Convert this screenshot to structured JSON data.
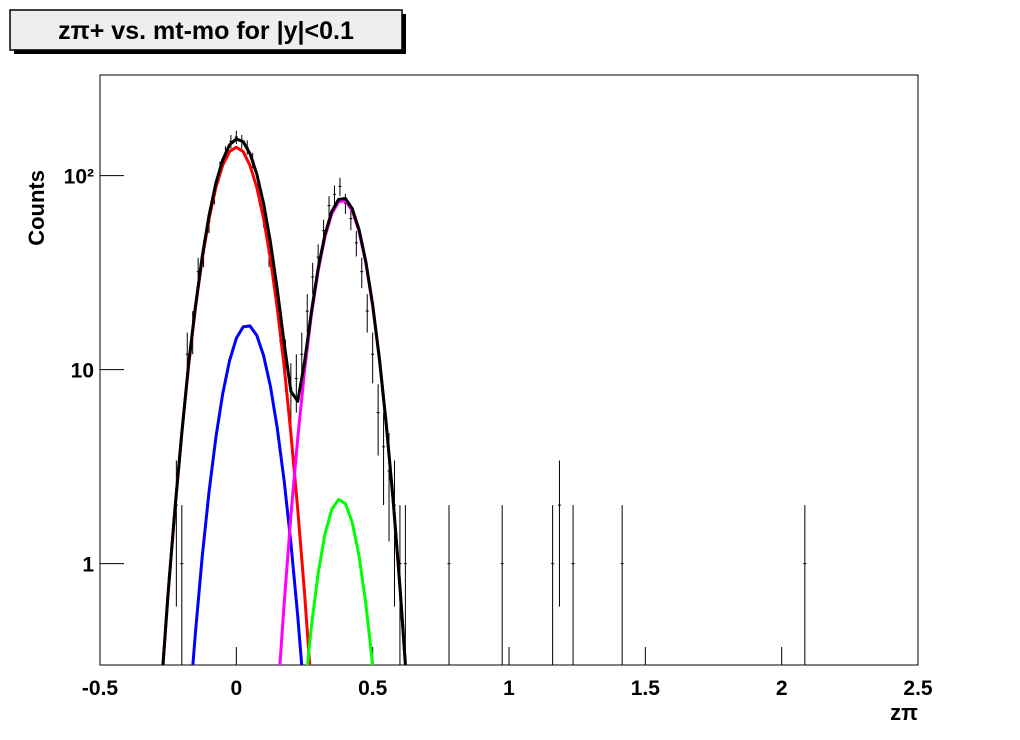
{
  "chart_data": {
    "type": "line",
    "title": "zπ+ vs. mt-mo for |y|<0.1",
    "x_label": "zπ",
    "y_label": "Counts",
    "log_y": true,
    "xlim": [
      -0.5,
      2.5
    ],
    "ylim": [
      0.3,
      330
    ],
    "xticks": [
      -0.5,
      0,
      0.5,
      1,
      1.5,
      2,
      2.5
    ],
    "yticks": [
      1,
      10,
      {
        "value": 100,
        "label": "10²"
      }
    ],
    "series": [
      {
        "style": "errorbar",
        "color": "#000000",
        "x": [
          -0.22,
          -0.2,
          -0.18,
          -0.16,
          -0.14,
          -0.12,
          -0.1,
          -0.08,
          -0.06,
          -0.04,
          -0.02,
          0,
          0.02,
          0.04,
          0.06,
          0.08,
          0.1,
          0.12,
          0.14,
          0.16,
          0.18,
          0.2,
          0.22,
          0.24,
          0.26,
          0.28,
          0.3,
          0.32,
          0.34,
          0.36,
          0.38,
          0.4,
          0.42,
          0.44,
          0.46,
          0.48,
          0.5,
          0.52,
          0.54,
          0.56,
          0.58,
          0.6,
          0.62,
          0.78,
          0.975,
          1.16,
          1.185,
          1.235,
          1.415,
          2.085
        ],
        "values": [
          2,
          1,
          12,
          16,
          32,
          40,
          58,
          80,
          108,
          130,
          150,
          158,
          150,
          140,
          120,
          90,
          62,
          40,
          30,
          18,
          11,
          8,
          9,
          12,
          20,
          30,
          38,
          52,
          70,
          80,
          88,
          72,
          60,
          45,
          32,
          20,
          12,
          6,
          4,
          3,
          2,
          1,
          1,
          1,
          1,
          1,
          2,
          1,
          1,
          1
        ],
        "errors": [
          1.4,
          1,
          3.5,
          4,
          5.7,
          6.3,
          7.6,
          8.9,
          10.4,
          11.4,
          12.2,
          12.6,
          12.2,
          11.8,
          11,
          9.5,
          7.9,
          6.3,
          5.5,
          4.2,
          3.3,
          2.8,
          3,
          3.5,
          4.5,
          5.5,
          6.2,
          7.2,
          8.4,
          8.9,
          9.4,
          8.5,
          7.7,
          6.7,
          5.7,
          4.5,
          3.5,
          2.4,
          2,
          1.7,
          1.4,
          1,
          1,
          1,
          1,
          1,
          1.4,
          1,
          1,
          1
        ]
      },
      {
        "style": "curve",
        "color": "#ff0000",
        "x": [
          -0.275,
          -0.25,
          -0.225,
          -0.2,
          -0.175,
          -0.15,
          -0.125,
          -0.1,
          -0.075,
          -0.05,
          -0.025,
          0,
          0.025,
          0.05,
          0.075,
          0.1,
          0.125,
          0.15,
          0.175,
          0.2,
          0.225,
          0.25,
          0.275
        ],
        "values": [
          0.23,
          0.71,
          1.92,
          4.7,
          10.5,
          20.8,
          37.3,
          60,
          87,
          113,
          133,
          140,
          133,
          113,
          87,
          60,
          37.3,
          20.8,
          10.5,
          4.7,
          1.92,
          0.71,
          0.23
        ]
      },
      {
        "style": "curve",
        "color": "#0000ff",
        "x": [
          -0.175,
          -0.15,
          -0.125,
          -0.1,
          -0.075,
          -0.05,
          -0.025,
          0,
          0.025,
          0.05,
          0.075,
          0.1,
          0.125,
          0.15,
          0.175,
          0.2,
          0.225,
          0.25
        ],
        "values": [
          0.16,
          0.44,
          1.09,
          2.35,
          4.47,
          7.5,
          11.1,
          14.5,
          16.6,
          16.8,
          15,
          11.8,
          8.2,
          5,
          2.7,
          1.28,
          0.54,
          0.2
        ]
      },
      {
        "style": "curve",
        "color": "#ff00ff",
        "x": [
          0.15,
          0.175,
          0.2,
          0.225,
          0.25,
          0.275,
          0.3,
          0.325,
          0.35,
          0.375,
          0.4,
          0.425,
          0.45,
          0.475,
          0.5,
          0.525,
          0.55,
          0.575,
          0.6,
          0.625
        ],
        "values": [
          0.19,
          0.61,
          1.76,
          4.4,
          9.8,
          19,
          32.3,
          48.3,
          63.5,
          73.3,
          74.2,
          66,
          51.6,
          35.4,
          21.3,
          11.2,
          5.2,
          2.13,
          0.76,
          0.24
        ]
      },
      {
        "style": "curve",
        "color": "#00ff00",
        "x": [
          0.25,
          0.275,
          0.3,
          0.325,
          0.35,
          0.375,
          0.4,
          0.425,
          0.45,
          0.475,
          0.5,
          0.525
        ],
        "values": [
          0.21,
          0.47,
          0.89,
          1.42,
          1.9,
          2.14,
          2.04,
          1.63,
          1.1,
          0.62,
          0.3,
          0.12
        ]
      },
      {
        "style": "curve",
        "color": "#000000",
        "x": [
          -0.275,
          -0.25,
          -0.225,
          -0.2,
          -0.175,
          -0.15,
          -0.125,
          -0.1,
          -0.075,
          -0.05,
          -0.025,
          0,
          0.025,
          0.05,
          0.075,
          0.1,
          0.125,
          0.15,
          0.175,
          0.2,
          0.225,
          0.25,
          0.275,
          0.3,
          0.325,
          0.35,
          0.375,
          0.4,
          0.425,
          0.45,
          0.475,
          0.5,
          0.525,
          0.55,
          0.575,
          0.6,
          0.625
        ],
        "values": [
          0.23,
          0.71,
          1.92,
          4.7,
          10.7,
          21.2,
          38.4,
          62.4,
          91.5,
          120.5,
          144,
          154.5,
          149.6,
          129.8,
          102,
          71.8,
          45.5,
          26,
          13.8,
          7.74,
          6.86,
          10.9,
          19.7,
          33.2,
          49.7,
          65.4,
          75.4,
          76.2,
          67.6,
          52.7,
          36,
          21.6,
          11.3,
          5.2,
          2.13,
          0.76,
          0.24
        ]
      }
    ]
  }
}
